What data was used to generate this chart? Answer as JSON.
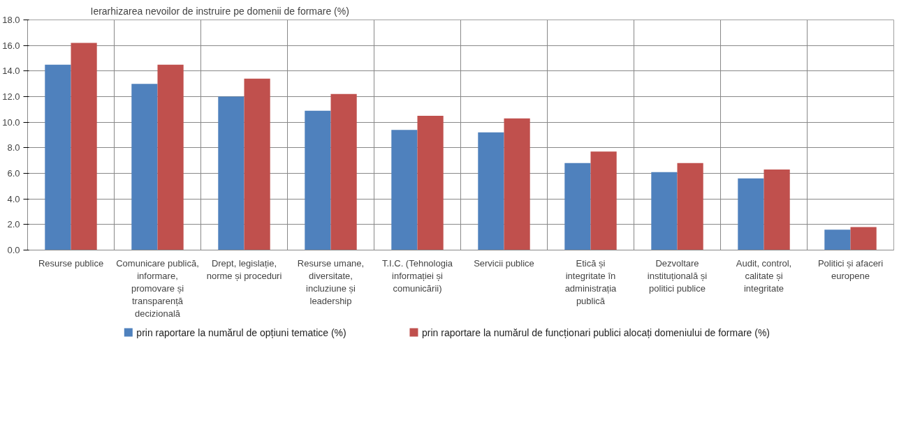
{
  "chart_data": {
    "type": "bar",
    "title": "Ierarhizarea nevoilor de instruire pe domenii de formare (%)",
    "categories": [
      "Resurse publice",
      "Comunicare publică, informare, promovare și transparență decizională",
      "Drept, legislație, norme și proceduri",
      "Resurse umane, diversitate, incluziune și leadership",
      "T.I.C. (Tehnologia informației și comunicării)",
      "Servicii publice",
      "Etică și integritate în administrația publică",
      "Dezvoltare instituțională și politici publice",
      "Audit, control, calitate și integritate",
      "Politici și afaceri europene"
    ],
    "series": [
      {
        "name": "prin raportare la numărul de opțiuni tematice (%)",
        "color": "#4f81bd",
        "values": [
          14.5,
          13.0,
          12.0,
          10.9,
          9.4,
          9.2,
          6.8,
          6.1,
          5.6,
          1.6
        ]
      },
      {
        "name": "prin raportare la numărul de funcționari publici alocați domeniului de formare (%)",
        "color": "#c0504d",
        "values": [
          16.2,
          14.5,
          13.4,
          12.2,
          10.5,
          10.3,
          7.7,
          6.8,
          6.3,
          1.8
        ]
      }
    ],
    "ylim": [
      0,
      18
    ],
    "yticks": [
      {
        "value": 0,
        "label": "0.0"
      },
      {
        "value": 2,
        "label": "2.0"
      },
      {
        "value": 4,
        "label": "4.0"
      },
      {
        "value": 6,
        "label": "6.0"
      },
      {
        "value": 8,
        "label": "8.0"
      },
      {
        "value": 10,
        "label": "10.0"
      },
      {
        "value": 12,
        "label": "12.0"
      },
      {
        "value": 14,
        "label": "14.0"
      },
      {
        "value": 16,
        "label": "16.0"
      },
      {
        "value": 18,
        "label": "18.0"
      }
    ],
    "grid": true,
    "legend": "bottom"
  }
}
